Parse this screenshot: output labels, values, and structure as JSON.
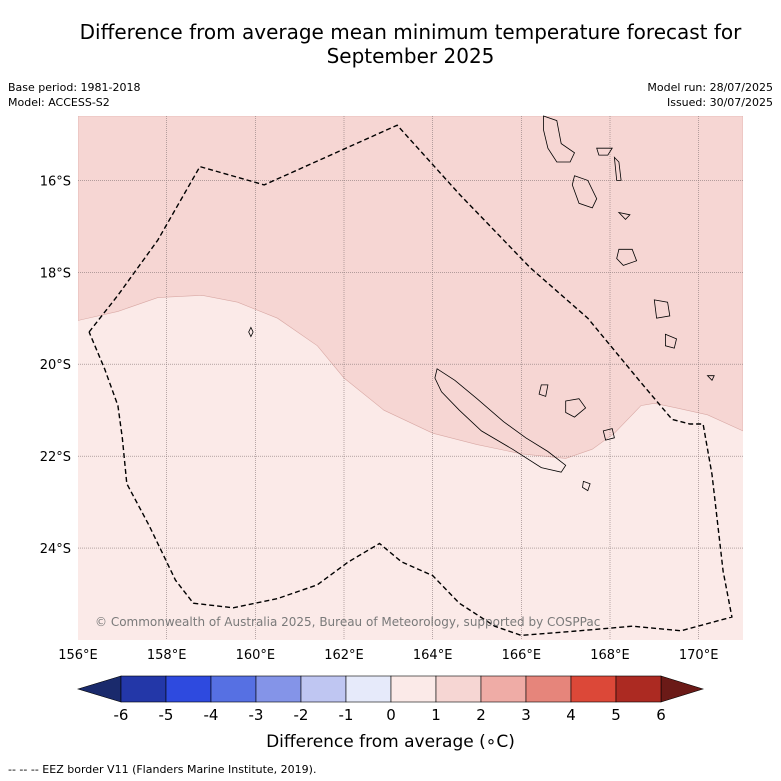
{
  "title_line1": "Difference from average mean minimum temperature forecast for",
  "title_line2": "September 2025",
  "meta_left": [
    "Base period: 1981-2018",
    "Model: ACCESS-S2"
  ],
  "meta_right": [
    "Model run: 28/07/2025",
    "Issued: 30/07/2025"
  ],
  "copyright": "© Commonwealth of Australia 2025, Bureau of Meteorology, supported by COSPPac",
  "map": {
    "lon_range": [
      156,
      171
    ],
    "lat_range": [
      -26.0,
      -14.6
    ],
    "lon_ticks": [
      156,
      158,
      160,
      162,
      164,
      166,
      168,
      170
    ],
    "lon_tick_labels": [
      "156°E",
      "158°E",
      "160°E",
      "162°E",
      "164°E",
      "166°E",
      "168°E",
      "170°E"
    ],
    "lat_ticks": [
      -16,
      -18,
      -20,
      -22,
      -24
    ],
    "lat_tick_labels": [
      "16°S",
      "18°S",
      "20°S",
      "22°S",
      "24°S"
    ],
    "grid": true,
    "anomaly_regions": [
      {
        "range": "1 to 2",
        "color": "#f6d6d3",
        "location": "north"
      },
      {
        "range": "0 to 1",
        "color": "#fbeae8",
        "location": "south"
      }
    ],
    "eez_boundary_lonlat": [
      [
        156.25,
        -19.3
      ],
      [
        156.9,
        -18.5
      ],
      [
        157.8,
        -17.3
      ],
      [
        158.75,
        -15.7
      ],
      [
        160.2,
        -16.1
      ],
      [
        163.2,
        -14.8
      ],
      [
        164.6,
        -16.3
      ],
      [
        166.2,
        -17.9
      ],
      [
        167.5,
        -19.0
      ],
      [
        168.7,
        -20.4
      ],
      [
        169.4,
        -21.2
      ],
      [
        169.8,
        -21.3
      ],
      [
        170.1,
        -21.3
      ],
      [
        170.3,
        -22.4
      ],
      [
        170.55,
        -24.5
      ],
      [
        170.75,
        -25.5
      ],
      [
        169.6,
        -25.8
      ],
      [
        168.5,
        -25.7
      ],
      [
        167.3,
        -25.8
      ],
      [
        166.0,
        -25.9
      ],
      [
        165.4,
        -25.7
      ],
      [
        164.6,
        -25.2
      ],
      [
        164.0,
        -24.6
      ],
      [
        163.3,
        -24.3
      ],
      [
        162.8,
        -23.9
      ],
      [
        162.1,
        -24.3
      ],
      [
        161.4,
        -24.8
      ],
      [
        160.5,
        -25.1
      ],
      [
        159.5,
        -25.3
      ],
      [
        158.6,
        -25.2
      ],
      [
        158.2,
        -24.7
      ],
      [
        157.6,
        -23.5
      ],
      [
        157.1,
        -22.6
      ],
      [
        157.0,
        -21.6
      ],
      [
        156.9,
        -20.9
      ],
      [
        156.6,
        -20.1
      ],
      [
        156.25,
        -19.3
      ]
    ],
    "boundary_lonlat": [
      [
        156,
        -19.05
      ],
      [
        156.9,
        -18.85
      ],
      [
        157.8,
        -18.55
      ],
      [
        158.8,
        -18.5
      ],
      [
        159.6,
        -18.65
      ],
      [
        160.5,
        -19.0
      ],
      [
        161.4,
        -19.6
      ],
      [
        162.0,
        -20.3
      ],
      [
        162.9,
        -21.0
      ],
      [
        164.0,
        -21.5
      ],
      [
        165.0,
        -21.75
      ],
      [
        166.0,
        -21.95
      ],
      [
        167.0,
        -22.05
      ],
      [
        167.6,
        -21.85
      ],
      [
        168.1,
        -21.5
      ],
      [
        168.7,
        -20.9
      ],
      [
        169.0,
        -20.85
      ],
      [
        169.5,
        -20.95
      ],
      [
        170.2,
        -21.1
      ],
      [
        171,
        -21.45
      ]
    ],
    "islands": [
      {
        "name_hint": "new-caledonia",
        "lonlat": [
          [
            164.1,
            -20.1
          ],
          [
            164.5,
            -20.35
          ],
          [
            165.0,
            -20.75
          ],
          [
            165.6,
            -21.25
          ],
          [
            166.1,
            -21.6
          ],
          [
            166.6,
            -21.9
          ],
          [
            167.0,
            -22.2
          ],
          [
            166.9,
            -22.35
          ],
          [
            166.45,
            -22.25
          ],
          [
            165.8,
            -21.85
          ],
          [
            165.1,
            -21.45
          ],
          [
            164.6,
            -21.0
          ],
          [
            164.2,
            -20.6
          ],
          [
            164.05,
            -20.3
          ]
        ]
      },
      {
        "name_hint": "ile-des-pins",
        "lonlat": [
          [
            167.4,
            -22.55
          ],
          [
            167.55,
            -22.6
          ],
          [
            167.5,
            -22.75
          ],
          [
            167.38,
            -22.68
          ]
        ]
      },
      {
        "name_hint": "lifou",
        "lonlat": [
          [
            167.0,
            -20.8
          ],
          [
            167.3,
            -20.75
          ],
          [
            167.45,
            -20.95
          ],
          [
            167.2,
            -21.15
          ],
          [
            167.0,
            -21.05
          ]
        ]
      },
      {
        "name_hint": "ouvea",
        "lonlat": [
          [
            166.45,
            -20.45
          ],
          [
            166.6,
            -20.45
          ],
          [
            166.55,
            -20.7
          ],
          [
            166.4,
            -20.65
          ]
        ]
      },
      {
        "name_hint": "mare",
        "lonlat": [
          [
            167.85,
            -21.45
          ],
          [
            168.05,
            -21.4
          ],
          [
            168.1,
            -21.6
          ],
          [
            167.9,
            -21.65
          ]
        ]
      },
      {
        "name_hint": "espiritu-santo",
        "lonlat": [
          [
            166.5,
            -14.6
          ],
          [
            166.8,
            -14.7
          ],
          [
            166.9,
            -15.2
          ],
          [
            167.2,
            -15.4
          ],
          [
            167.1,
            -15.6
          ],
          [
            166.8,
            -15.6
          ],
          [
            166.6,
            -15.3
          ],
          [
            166.5,
            -14.9
          ]
        ]
      },
      {
        "name_hint": "malekula",
        "lonlat": [
          [
            167.2,
            -15.9
          ],
          [
            167.5,
            -16.0
          ],
          [
            167.7,
            -16.4
          ],
          [
            167.6,
            -16.6
          ],
          [
            167.3,
            -16.5
          ],
          [
            167.15,
            -16.1
          ]
        ]
      },
      {
        "name_hint": "efate",
        "lonlat": [
          [
            168.2,
            -17.5
          ],
          [
            168.5,
            -17.5
          ],
          [
            168.6,
            -17.75
          ],
          [
            168.3,
            -17.85
          ],
          [
            168.15,
            -17.7
          ]
        ]
      },
      {
        "name_hint": "erromango",
        "lonlat": [
          [
            169.0,
            -18.6
          ],
          [
            169.3,
            -18.65
          ],
          [
            169.35,
            -18.95
          ],
          [
            169.05,
            -19.0
          ]
        ]
      },
      {
        "name_hint": "tanna",
        "lonlat": [
          [
            169.25,
            -19.35
          ],
          [
            169.5,
            -19.45
          ],
          [
            169.45,
            -19.65
          ],
          [
            169.25,
            -19.6
          ]
        ]
      },
      {
        "name_hint": "pentecost",
        "lonlat": [
          [
            168.1,
            -15.5
          ],
          [
            168.2,
            -15.6
          ],
          [
            168.25,
            -16.0
          ],
          [
            168.15,
            -16.0
          ]
        ]
      },
      {
        "name_hint": "ambae",
        "lonlat": [
          [
            167.7,
            -15.3
          ],
          [
            168.05,
            -15.3
          ],
          [
            167.95,
            -15.45
          ],
          [
            167.75,
            -15.45
          ]
        ]
      },
      {
        "name_hint": "epi",
        "lonlat": [
          [
            168.2,
            -16.7
          ],
          [
            168.45,
            -16.75
          ],
          [
            168.35,
            -16.85
          ]
        ]
      },
      {
        "name_hint": "chesterfield",
        "lonlat": [
          [
            159.9,
            -19.2
          ],
          [
            159.95,
            -19.3
          ],
          [
            159.9,
            -19.4
          ],
          [
            159.85,
            -19.3
          ]
        ]
      },
      {
        "name_hint": "hunter",
        "lonlat": [
          [
            170.2,
            -20.25
          ],
          [
            170.35,
            -20.25
          ],
          [
            170.3,
            -20.35
          ]
        ]
      }
    ]
  },
  "colorbar": {
    "labels": [
      "-6",
      "-5",
      "-4",
      "-3",
      "-2",
      "-1",
      "0",
      "1",
      "2",
      "3",
      "4",
      "5",
      "6"
    ],
    "under_color": "#1a2a6c",
    "over_color": "#6b1a17",
    "colors": [
      "#2337a8",
      "#2e4adf",
      "#5670e3",
      "#8494e8",
      "#bfc6f2",
      "#e6eafa",
      "#fbeae8",
      "#f6d6d3",
      "#efaca6",
      "#e6857b",
      "#dc4838",
      "#ac2a22"
    ],
    "title": "Difference from average (∘C)"
  },
  "footnote": "--  --  -- EEZ border V11 (Flanders Marine Institute, 2019)."
}
